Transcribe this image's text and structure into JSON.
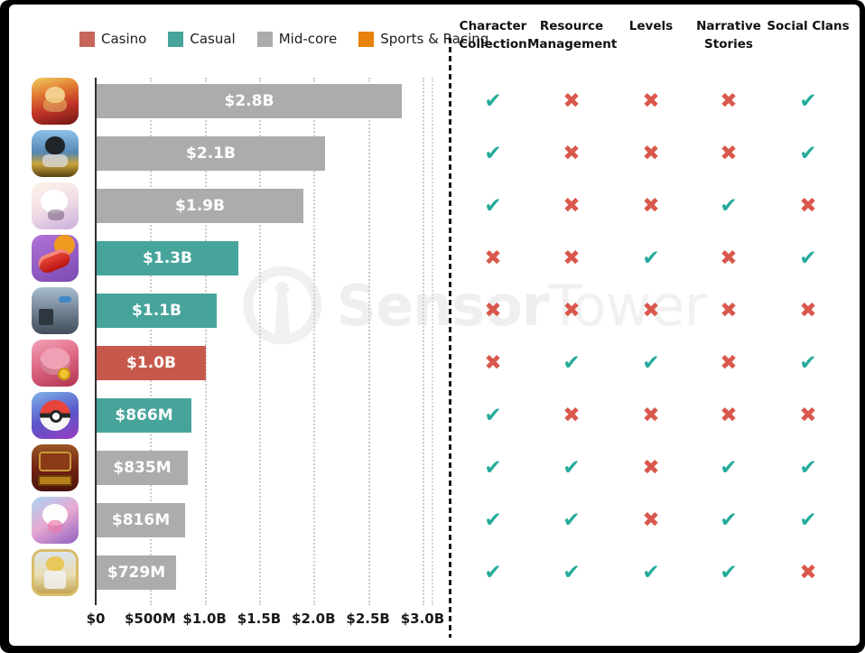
{
  "legend": {
    "items": [
      {
        "label": "Casino",
        "color": "#c7655a"
      },
      {
        "label": "Casual",
        "color": "#47a49b"
      },
      {
        "label": "Mid-core",
        "color": "#acacac"
      },
      {
        "label": "Sports & Racing",
        "color": "#e8820c"
      }
    ]
  },
  "watermark": {
    "brand_bold": "Sensor",
    "brand_light": "Tower"
  },
  "feature_columns": [
    "Character Collection",
    "Resource Management",
    "Levels",
    "Narrative Stories",
    "Social Clans"
  ],
  "marks": {
    "check_glyph": "✔",
    "cross_glyph": "✖",
    "check_color": "#25ab9b",
    "cross_color": "#d9584c"
  },
  "chart_data": {
    "type": "bar",
    "orientation": "horizontal",
    "title": "",
    "xlabel": "",
    "ylabel": "",
    "x_axis": {
      "tick_labels": [
        "$0",
        "$500M",
        "$1.0B",
        "$1.5B",
        "$2.0B",
        "$2.5B",
        "$3.0B"
      ],
      "min_billions": 0,
      "max_billions": 3.0,
      "grid": "dotted"
    },
    "category_colors": {
      "Casino": "#c7594c",
      "Casual": "#47a49b",
      "Mid-core": "#acacac",
      "Sports & Racing": "#e8820c"
    },
    "rows": [
      {
        "icon": "honor-of-kings-icon",
        "label": "$2.8B",
        "value_billions": 2.8,
        "category": "Mid-core",
        "features": [
          true,
          false,
          false,
          false,
          true
        ]
      },
      {
        "icon": "pubg-mobile-icon",
        "label": "$2.1B",
        "value_billions": 2.1,
        "category": "Mid-core",
        "features": [
          true,
          false,
          false,
          false,
          true
        ]
      },
      {
        "icon": "genshin-impact-icon",
        "label": "$1.9B",
        "value_billions": 1.9,
        "category": "Mid-core",
        "features": [
          true,
          false,
          false,
          true,
          false
        ]
      },
      {
        "icon": "candy-crush-saga-icon",
        "label": "$1.3B",
        "value_billions": 1.3,
        "category": "Casual",
        "features": [
          false,
          false,
          true,
          false,
          true
        ]
      },
      {
        "icon": "roblox-icon",
        "label": "$1.1B",
        "value_billions": 1.1,
        "category": "Casual",
        "features": [
          false,
          false,
          false,
          false,
          false
        ]
      },
      {
        "icon": "coin-master-icon",
        "label": "$1.0B",
        "value_billions": 1.0,
        "category": "Casino",
        "features": [
          false,
          true,
          true,
          false,
          true
        ]
      },
      {
        "icon": "pokemon-go-icon",
        "label": "$866M",
        "value_billions": 0.866,
        "category": "Casual",
        "features": [
          true,
          false,
          false,
          false,
          false
        ]
      },
      {
        "icon": "three-kingdoms-tactics-icon",
        "label": "$835M",
        "value_billions": 0.835,
        "category": "Mid-core",
        "features": [
          true,
          true,
          false,
          true,
          true
        ]
      },
      {
        "icon": "uma-musume-icon",
        "label": "$816M",
        "value_billions": 0.816,
        "category": "Mid-core",
        "features": [
          true,
          true,
          false,
          true,
          true
        ]
      },
      {
        "icon": "fate-grand-order-icon",
        "label": "$729M",
        "value_billions": 0.729,
        "category": "Mid-core",
        "features": [
          true,
          true,
          true,
          true,
          false
        ]
      }
    ]
  }
}
